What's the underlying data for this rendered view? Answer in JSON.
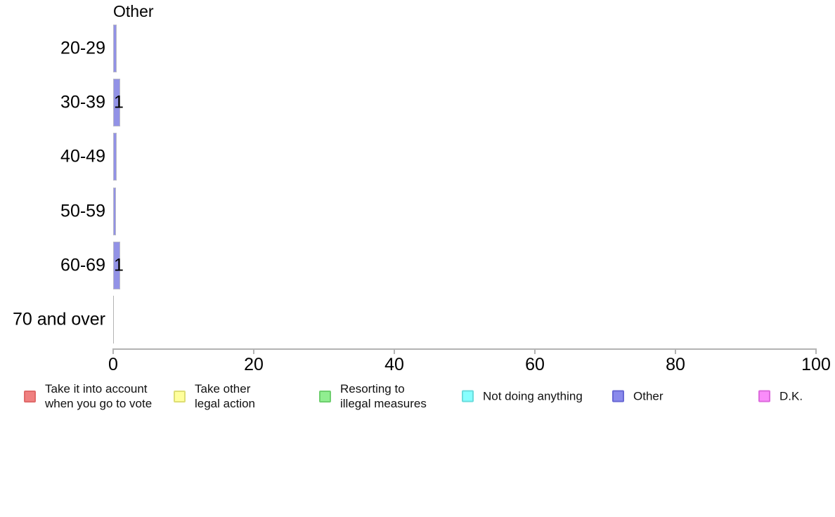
{
  "chart_data": {
    "type": "bar",
    "orientation": "horizontal",
    "title": "Other",
    "categories": [
      "20-29",
      "30-39",
      "40-49",
      "50-59",
      "60-69",
      "70 and over"
    ],
    "values": [
      0.5,
      1,
      0.5,
      0.35,
      1,
      0
    ],
    "bar_labels": [
      "",
      "1",
      "",
      "",
      "1",
      ""
    ],
    "xlabel": "",
    "ylabel": "",
    "xlim": [
      0,
      100
    ],
    "x_ticks": [
      "0",
      "20",
      "40",
      "60",
      "80",
      "100"
    ],
    "grid": "off",
    "legend_position": "bottom",
    "colors": {
      "bar_fill": "#9292e6",
      "bar_border": "#b8b8c8",
      "zero_bar_line": "#b3b3b3",
      "axis": "#b3b3b3",
      "text": "#000000"
    },
    "legend": [
      {
        "name": "take-into-account-vote",
        "lines": [
          "Take it into account",
          "when you go to vote"
        ],
        "fill": "#f08080",
        "border": "#e06a6a"
      },
      {
        "name": "take-other-legal-action",
        "lines": [
          "Take other",
          "legal action"
        ],
        "fill": "#ffff9c",
        "border": "#dede74"
      },
      {
        "name": "resorting-illegal-measures",
        "lines": [
          "Resorting to",
          "illegal measures"
        ],
        "fill": "#90ee90",
        "border": "#6ecf6e"
      },
      {
        "name": "not-doing-anything",
        "lines": [
          "Not doing anything"
        ],
        "fill": "#87ffff",
        "border": "#6adcdc"
      },
      {
        "name": "other",
        "lines": [
          "Other"
        ],
        "fill": "#8a8aec",
        "border": "#6868d4"
      },
      {
        "name": "dk",
        "lines": [
          "D.K."
        ],
        "fill": "#fa8cfa",
        "border": "#dc6adc"
      }
    ]
  }
}
